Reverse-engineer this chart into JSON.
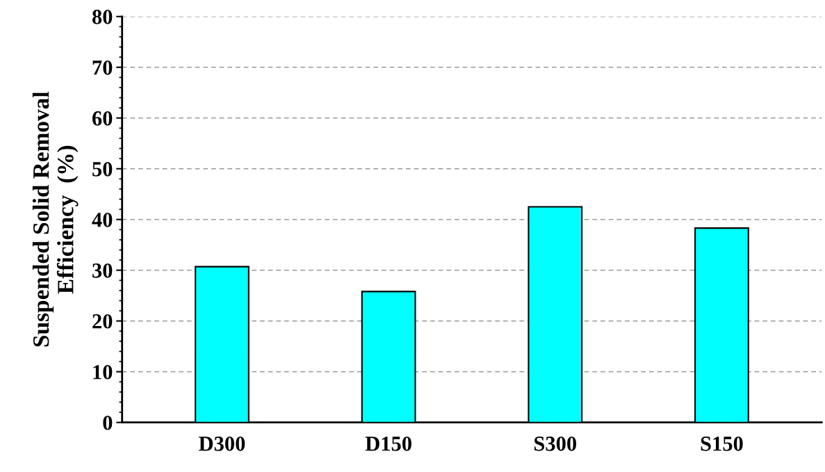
{
  "chart_data": {
    "type": "bar",
    "ylabel": "Suspended Solid Removal\nEfficiency  (%)",
    "categories": [
      "D300",
      "D150",
      "S300",
      "S150"
    ],
    "values": [
      30.7,
      25.8,
      42.5,
      38.3
    ],
    "color": "#00ffff",
    "ylim": [
      0,
      80
    ],
    "yticks": [
      0,
      10,
      20,
      30,
      40,
      50,
      60,
      70,
      80
    ],
    "grid": "y"
  }
}
